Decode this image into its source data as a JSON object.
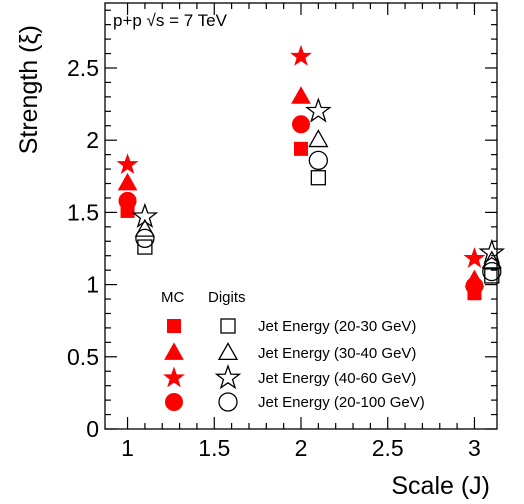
{
  "chart_data": {
    "type": "scatter",
    "annotation": "p+p  √s = 7 TeV",
    "xlabel": "Scale (J)",
    "ylabel": "Strength (ξ)",
    "xlim": [
      0.87,
      3.13
    ],
    "ylim": [
      0,
      2.95
    ],
    "x_ticks": [
      1,
      1.5,
      2,
      2.5,
      3
    ],
    "x_tick_labels": [
      "1",
      "1.5",
      "2",
      "2.5",
      "3"
    ],
    "y_ticks": [
      0,
      0.5,
      1,
      1.5,
      2,
      2.5
    ],
    "y_tick_labels": [
      "0",
      "0.5",
      "1",
      "1.5",
      "2",
      "2.5"
    ],
    "grid": false,
    "legend_placement": "bottom-right",
    "legend_headers": {
      "mc": "MC",
      "digits": "Digits"
    },
    "colors": {
      "mc": "#ff0000",
      "digits": "#000000"
    },
    "series": [
      {
        "name": "Jet Energy (20-30 GeV)",
        "marker": "square",
        "mc": {
          "x": [
            1.0,
            2.0,
            3.0
          ],
          "y": [
            1.51,
            1.94,
            0.94
          ]
        },
        "digits": {
          "x": [
            1.1,
            2.1,
            3.1
          ],
          "y": [
            1.26,
            1.74,
            1.06
          ]
        }
      },
      {
        "name": "Jet Energy (30-40 GeV)",
        "marker": "triangle",
        "mc": {
          "x": [
            1.0,
            2.0,
            3.0
          ],
          "y": [
            1.7,
            2.3,
            1.03
          ]
        },
        "digits": {
          "x": [
            1.1,
            2.1,
            3.1
          ],
          "y": [
            1.38,
            2.0,
            1.16
          ]
        }
      },
      {
        "name": "Jet Energy (40-60 GeV)",
        "marker": "star",
        "mc": {
          "x": [
            1.0,
            2.0,
            3.0
          ],
          "y": [
            1.83,
            2.58,
            1.18
          ]
        },
        "digits": {
          "x": [
            1.1,
            2.1,
            3.1
          ],
          "y": [
            1.47,
            2.2,
            1.22
          ]
        }
      },
      {
        "name": "Jet Energy (20-100 GeV)",
        "marker": "circle",
        "mc": {
          "x": [
            1.0,
            2.0,
            3.0
          ],
          "y": [
            1.58,
            2.11,
            0.99
          ]
        },
        "digits": {
          "x": [
            1.1,
            2.1,
            3.1
          ],
          "y": [
            1.32,
            1.86,
            1.09
          ]
        }
      }
    ]
  }
}
